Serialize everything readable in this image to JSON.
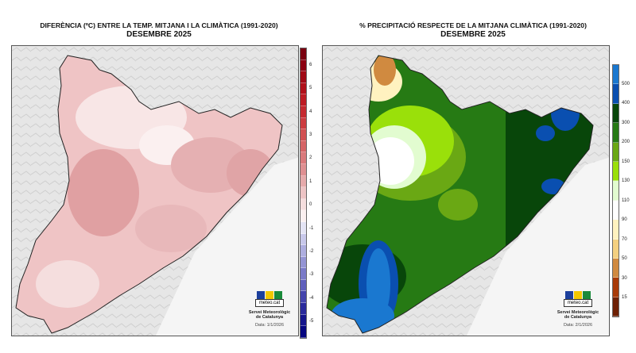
{
  "maps": [
    {
      "title": "DIFERÈNCIA (ºC) ENTRE LA TEMP. MITJANA I LA CLIMÀTICA (1991-2020)",
      "subtitle": "DESEMBRE 2025",
      "legend": {
        "colors": [
          "#7a0010",
          "#8c0011",
          "#a00915",
          "#b0101a",
          "#bd1c24",
          "#c52a30",
          "#cc3c40",
          "#d15052",
          "#d56466",
          "#da7a7c",
          "#df9092",
          "#e6aaab",
          "#edc4c5",
          "#f5dede",
          "#fbf0f0",
          "#e4e4f4",
          "#c8c8ea",
          "#aeaedf",
          "#9494d4",
          "#7a7ac8",
          "#5f5fbc",
          "#4444ad",
          "#2a2a9c",
          "#15158c",
          "#060680"
        ],
        "labels": [
          "6",
          "5",
          "4",
          "3",
          "2",
          "1",
          "0",
          "-1",
          "-2",
          "-3",
          "-4",
          "-5"
        ]
      },
      "logo": {
        "brand": "meteo.cat",
        "org_line1": "Servei Meteorològic",
        "org_line2": "de Catalunya",
        "date": "Data: 1/1/2026"
      }
    },
    {
      "title": "% PRECIPITACIÓ RESPECTE DE LA MITJANA CLIMÀTICA (1991-2020)",
      "subtitle": "DESEMBRE 2025",
      "legend": {
        "colors": [
          "#1a78d0",
          "#0a4fb0",
          "#08460a",
          "#267a14",
          "#6aa814",
          "#9ae00a",
          "#e2fcd0",
          "#ffffff",
          "#fff2c0",
          "#f4d080",
          "#d08a40",
          "#a83a08",
          "#6e2004"
        ],
        "labels": [
          "500",
          "400",
          "300",
          "200",
          "150",
          "130",
          "110",
          "90",
          "70",
          "50",
          "30",
          "15"
        ]
      },
      "logo": {
        "brand": "meteo.cat",
        "org_line1": "Servei Meteorològic",
        "org_line2": "de Catalunya",
        "date": "Data: 2/1/2026"
      }
    }
  ],
  "colors": {
    "land_bg": "#f2f2f2",
    "sea": "#f5f5f5",
    "border": "#555555"
  }
}
